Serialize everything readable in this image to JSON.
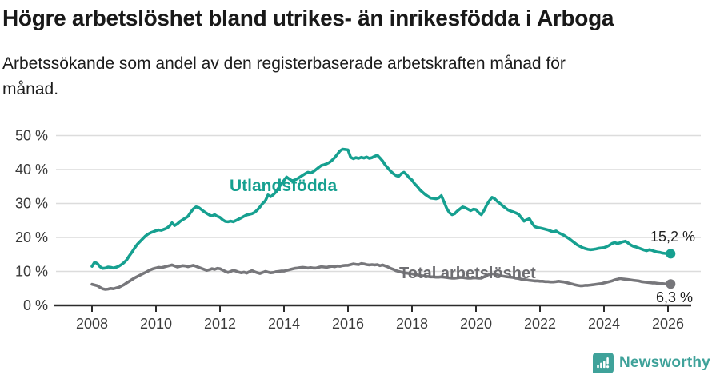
{
  "header": {
    "title": "Högre arbetslöshet bland utrikes- än inrikesfödda i Arboga",
    "subtitle_line1": "Arbetssökande som andel av den registerbaserade arbetskraften månad för",
    "subtitle_line2": "månad."
  },
  "chart_data": {
    "type": "line",
    "unit": "percent",
    "x_start": "2008-01",
    "x_end": "2026-02",
    "grid": true,
    "x_tick_years": [
      2008,
      2010,
      2012,
      2014,
      2016,
      2018,
      2020,
      2022,
      2024,
      2026
    ],
    "y_ticks": [
      {
        "value": 0,
        "label": "0 %"
      },
      {
        "value": 10,
        "label": "10 %"
      },
      {
        "value": 20,
        "label": "20 %"
      },
      {
        "value": 30,
        "label": "30 %"
      },
      {
        "value": 40,
        "label": "40 %"
      },
      {
        "value": 50,
        "label": "50 %"
      }
    ],
    "ylim": [
      0,
      50
    ],
    "series": [
      {
        "name": "Utlandsfödda",
        "color": "#16A090",
        "end_label": "15,2 %",
        "last_value": 15.2,
        "monthly_values": [
          11.5,
          12.7,
          12.3,
          11.4,
          10.9,
          11.0,
          11.3,
          11.2,
          11.0,
          11.2,
          11.5,
          12.0,
          12.6,
          13.4,
          14.6,
          15.7,
          16.9,
          18.0,
          18.8,
          19.6,
          20.4,
          21.0,
          21.4,
          21.7,
          22.0,
          22.2,
          22.1,
          22.4,
          22.7,
          23.3,
          24.3,
          23.5,
          24.0,
          24.7,
          25.2,
          25.7,
          26.2,
          27.4,
          28.4,
          29.0,
          28.8,
          28.2,
          27.6,
          27.1,
          26.6,
          26.3,
          26.7,
          26.2,
          25.9,
          25.2,
          24.7,
          24.6,
          24.8,
          24.6,
          25.0,
          25.4,
          25.8,
          26.2,
          26.6,
          26.8,
          27.0,
          27.4,
          28.1,
          29.0,
          30.0,
          30.8,
          32.5,
          32.0,
          32.6,
          33.4,
          34.6,
          35.8,
          36.8,
          37.8,
          37.2,
          36.7,
          36.9,
          37.3,
          37.8,
          38.3,
          38.8,
          39.2,
          39.0,
          39.4,
          40.0,
          40.6,
          41.2,
          41.4,
          41.7,
          42.1,
          42.7,
          43.5,
          44.5,
          45.5,
          46.0,
          45.9,
          45.8,
          43.6,
          43.2,
          43.5,
          43.3,
          43.6,
          43.4,
          43.7,
          43.3,
          43.5,
          43.9,
          44.2,
          43.4,
          42.5,
          41.3,
          40.4,
          39.5,
          38.8,
          38.2,
          38.0,
          38.8,
          39.2,
          38.5,
          37.5,
          36.9,
          35.8,
          35.0,
          34.0,
          33.3,
          32.6,
          32.1,
          31.6,
          31.5,
          31.4,
          31.6,
          32.3,
          30.5,
          28.6,
          27.3,
          26.7,
          27.0,
          27.8,
          28.4,
          29.0,
          28.7,
          28.3,
          27.9,
          28.3,
          28.2,
          27.3,
          26.7,
          27.9,
          29.5,
          30.8,
          31.8,
          31.4,
          30.6,
          30.0,
          29.3,
          28.7,
          28.1,
          27.8,
          27.5,
          27.2,
          26.8,
          25.8,
          24.8,
          25.2,
          25.5,
          24.2,
          23.2,
          22.9,
          22.8,
          22.6,
          22.4,
          22.2,
          21.9,
          21.6,
          21.9,
          21.4,
          21.0,
          20.6,
          20.1,
          19.6,
          19.0,
          18.4,
          17.8,
          17.4,
          17.0,
          16.7,
          16.5,
          16.4,
          16.5,
          16.6,
          16.8,
          16.9,
          17.0,
          17.3,
          17.7,
          18.2,
          18.5,
          18.2,
          18.4,
          18.7,
          18.9,
          18.4,
          17.8,
          17.4,
          17.2,
          16.9,
          16.6,
          16.3,
          16.1,
          16.4,
          16.2,
          15.9,
          15.7,
          15.6,
          15.4,
          15.3,
          15.3,
          15.2
        ]
      },
      {
        "name": "Total arbetslöshet",
        "color": "#77777B",
        "end_label": "6,3 %",
        "last_value": 6.3,
        "monthly_values": [
          6.2,
          6.0,
          5.8,
          5.3,
          4.9,
          4.7,
          4.8,
          5.0,
          4.9,
          5.1,
          5.3,
          5.7,
          6.1,
          6.6,
          7.1,
          7.6,
          8.1,
          8.5,
          8.9,
          9.3,
          9.7,
          10.1,
          10.5,
          10.8,
          11.0,
          11.2,
          11.1,
          11.3,
          11.5,
          11.7,
          11.9,
          11.6,
          11.3,
          11.5,
          11.7,
          11.6,
          11.4,
          11.6,
          11.8,
          11.5,
          11.2,
          10.9,
          10.6,
          10.3,
          10.5,
          10.8,
          10.6,
          10.9,
          10.8,
          10.4,
          10.0,
          9.7,
          10.0,
          10.3,
          10.1,
          9.8,
          9.6,
          9.8,
          9.5,
          9.9,
          10.2,
          9.9,
          9.6,
          9.4,
          9.7,
          10.0,
          9.8,
          9.6,
          9.7,
          9.9,
          10.0,
          10.1,
          10.1,
          10.3,
          10.5,
          10.7,
          10.9,
          11.0,
          11.1,
          11.2,
          11.1,
          11.0,
          11.1,
          11.0,
          11.0,
          11.2,
          11.4,
          11.3,
          11.2,
          11.4,
          11.5,
          11.4,
          11.6,
          11.5,
          11.7,
          11.8,
          11.8,
          12.0,
          12.2,
          12.1,
          12.0,
          12.3,
          12.2,
          12.0,
          11.9,
          12.0,
          11.9,
          12.0,
          11.7,
          11.9,
          11.6,
          11.3,
          10.9,
          10.6,
          10.2,
          10.0,
          9.8,
          9.6,
          9.5,
          9.4,
          9.3,
          9.1,
          9.0,
          8.8,
          8.7,
          8.6,
          8.5,
          8.4,
          8.4,
          8.3,
          8.3,
          8.4,
          8.3,
          8.2,
          8.1,
          8.0,
          8.0,
          8.1,
          8.2,
          8.2,
          8.1,
          8.0,
          8.0,
          8.1,
          8.1,
          8.0,
          8.0,
          8.4,
          8.8,
          9.1,
          9.3,
          9.2,
          9.0,
          8.8,
          8.6,
          8.5,
          8.4,
          8.3,
          8.2,
          8.0,
          7.9,
          7.7,
          7.6,
          7.5,
          7.4,
          7.3,
          7.2,
          7.2,
          7.1,
          7.1,
          7.0,
          7.0,
          6.9,
          6.9,
          7.0,
          7.1,
          7.0,
          6.9,
          6.7,
          6.5,
          6.3,
          6.1,
          5.9,
          5.8,
          5.8,
          5.9,
          5.9,
          6.0,
          6.1,
          6.2,
          6.3,
          6.4,
          6.6,
          6.8,
          7.0,
          7.2,
          7.5,
          7.7,
          7.9,
          7.8,
          7.7,
          7.6,
          7.5,
          7.4,
          7.3,
          7.2,
          7.0,
          6.9,
          6.8,
          6.7,
          6.6,
          6.6,
          6.5,
          6.4,
          6.4,
          6.3,
          6.3,
          6.3
        ]
      }
    ]
  },
  "footer": {
    "brand": "Newsworthy",
    "logo_icon": "bar-chart-speech-bubble",
    "brand_color": "#3FA29A"
  },
  "colors": {
    "accent_teal": "#16A090",
    "series_gray": "#77777B",
    "grid": "#DCDCDC",
    "axis": "#2B2B2B",
    "text": "#1C1C1C"
  }
}
